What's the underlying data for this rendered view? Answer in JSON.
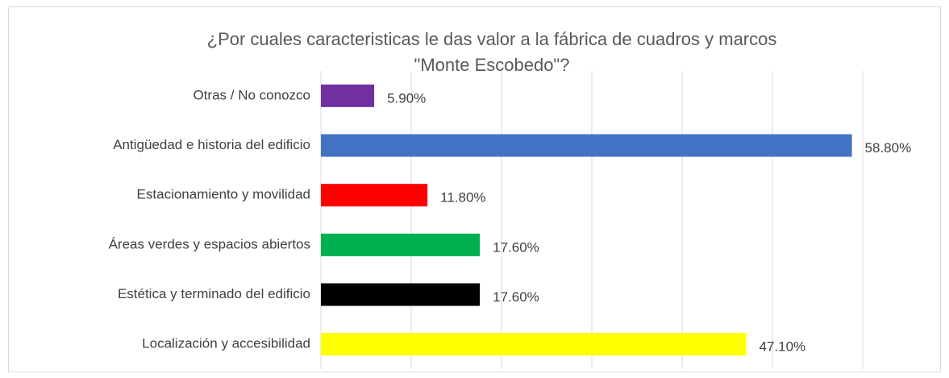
{
  "chart_data": {
    "type": "bar",
    "orientation": "horizontal",
    "title": [
      "¿Por cuales caracteristicas le das valor a la fábrica de cuadros y marcos",
      "\"Monte Escobedo\"?"
    ],
    "categories": [
      "Otras / No conozco",
      "Antigüedad e historia del edificio",
      "Estacionamiento y movilidad",
      "Áreas verdes y espacios abiertos",
      "Estética y terminado del edificio",
      "Localización y accesibilidad"
    ],
    "values": [
      5.9,
      58.8,
      11.8,
      17.6,
      17.6,
      47.1
    ],
    "value_labels": [
      "5.90%",
      "58.80%",
      "11.80%",
      "17.60%",
      "17.60%",
      "47.10%"
    ],
    "colors": [
      "#7030a0",
      "#4472c4",
      "#ff0000",
      "#00b050",
      "#000000",
      "#ffff00"
    ],
    "xlim": [
      0,
      60
    ],
    "xticks": [
      0,
      10,
      20,
      30,
      40,
      50,
      60
    ],
    "grid": true
  }
}
